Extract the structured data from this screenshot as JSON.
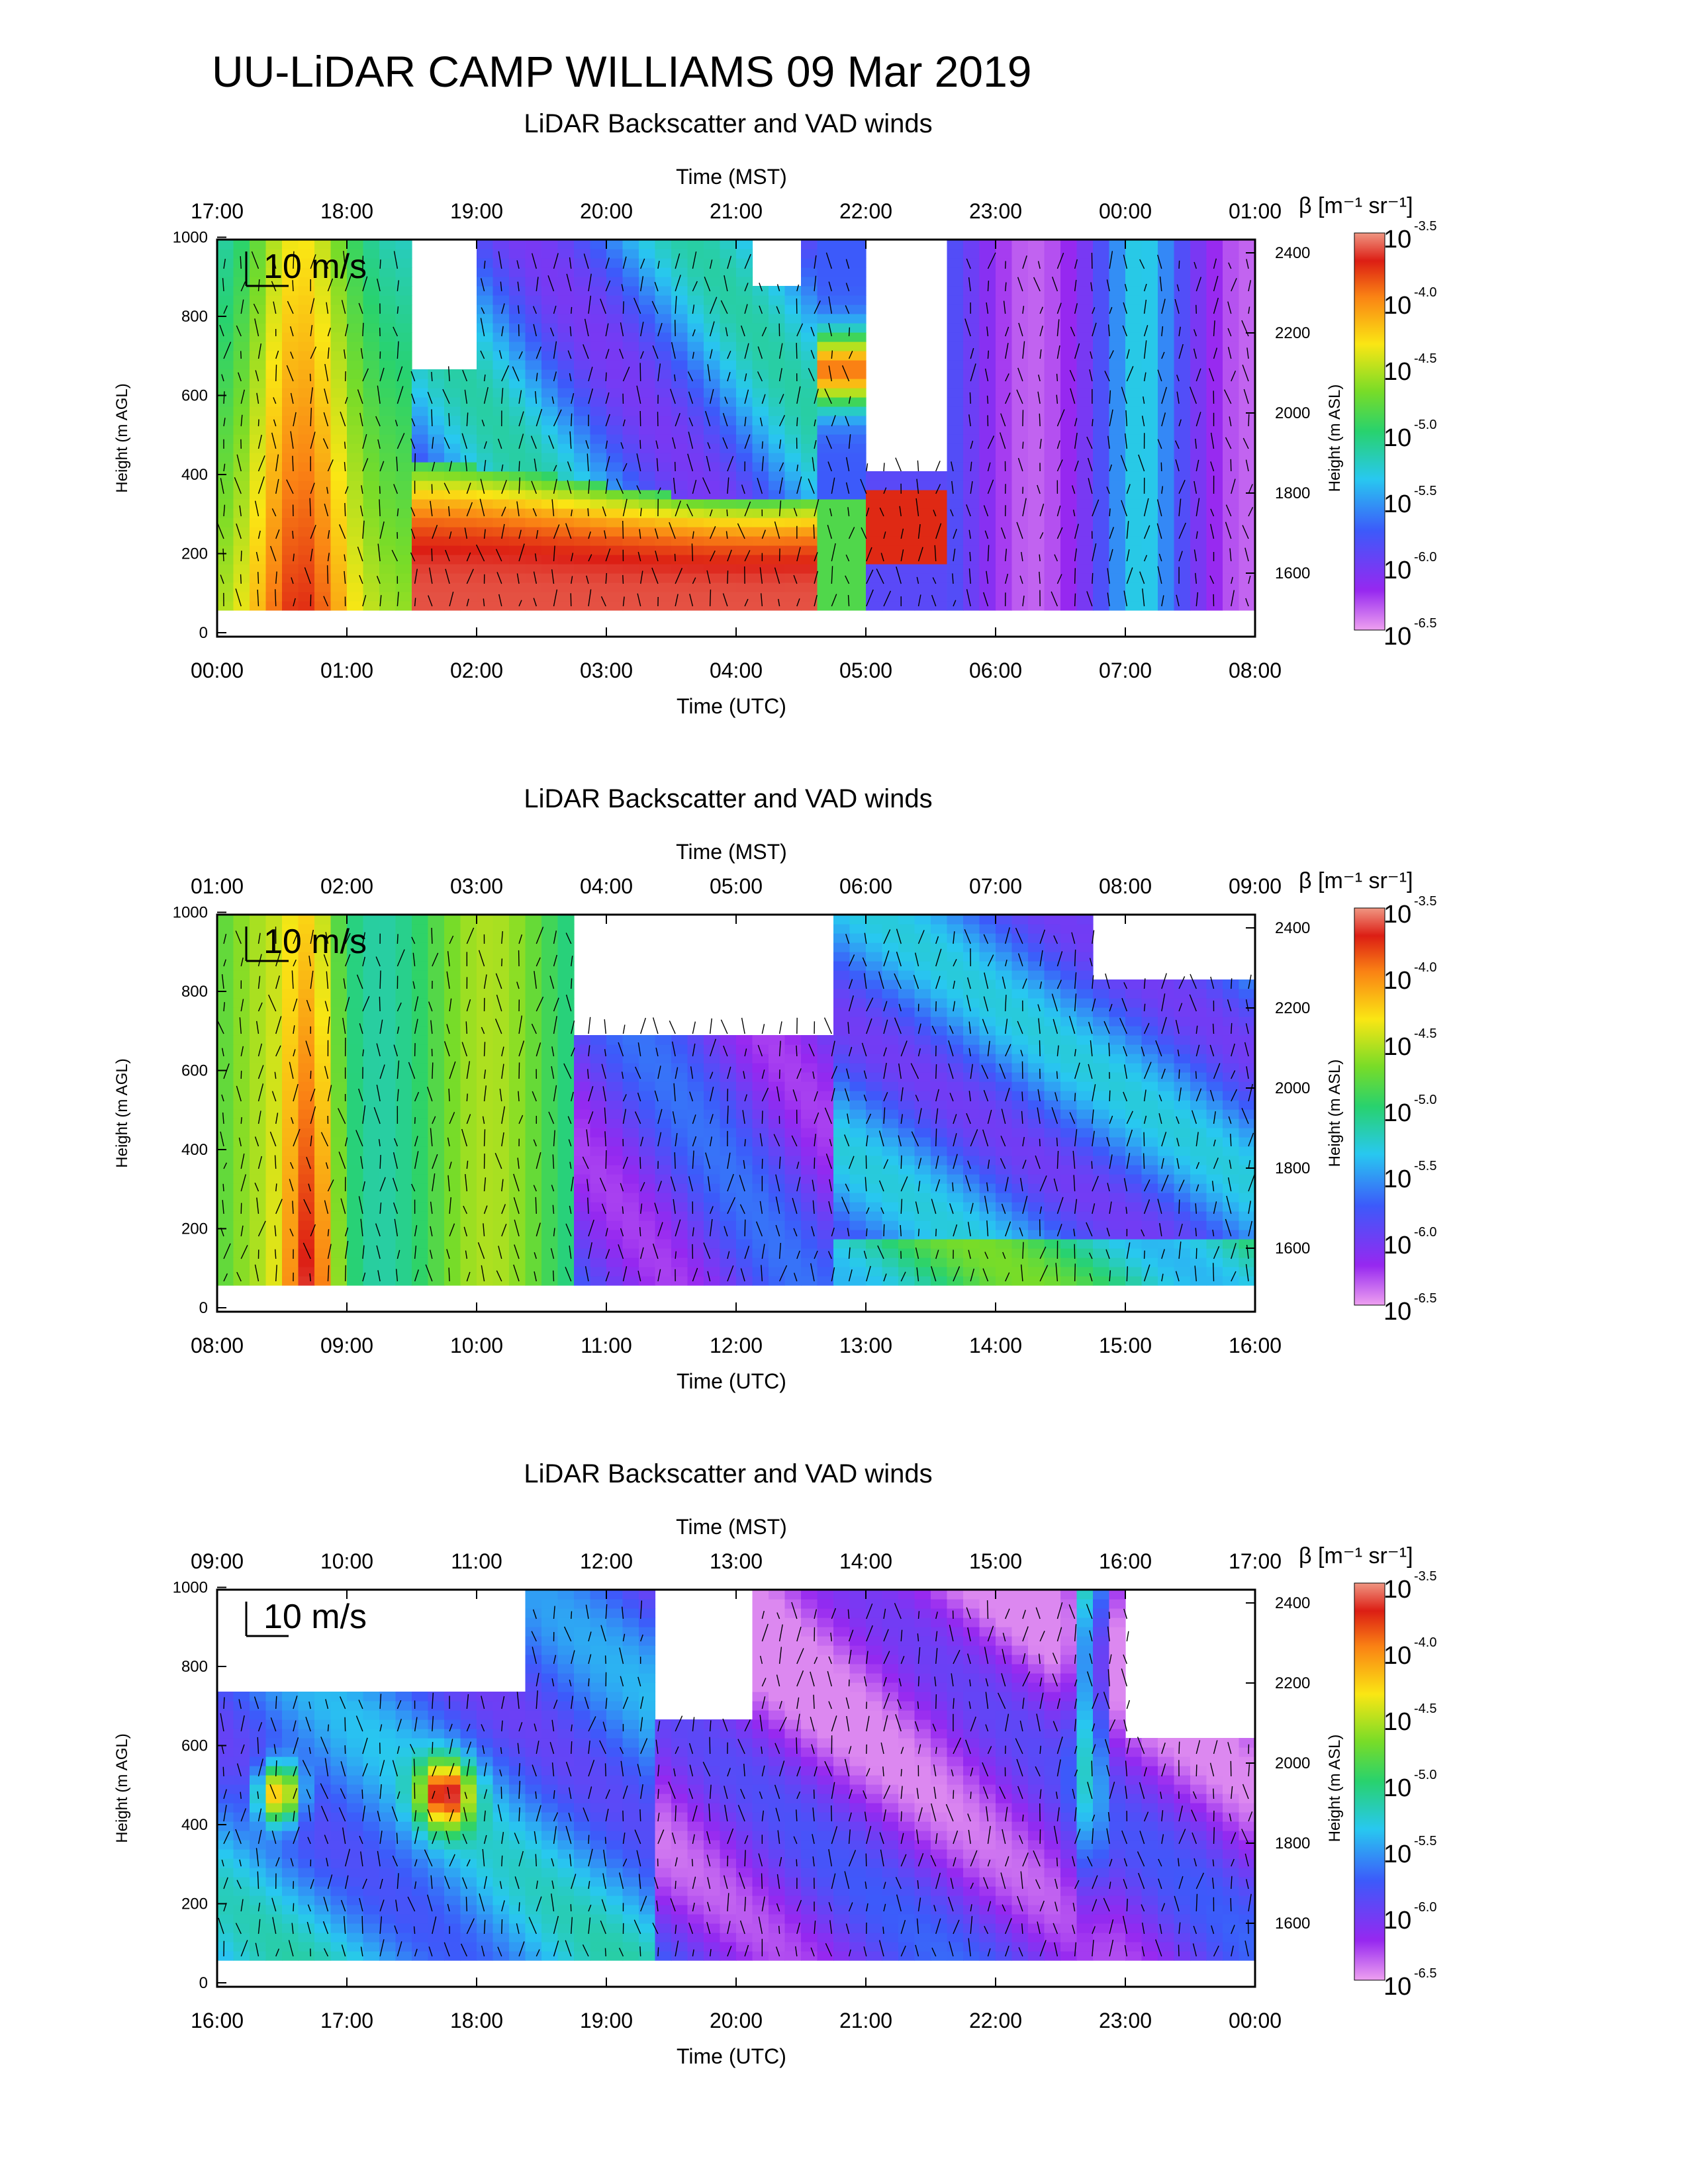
{
  "page": {
    "title": "UU-LiDAR CAMP WILLIAMS 09 Mar 2019"
  },
  "chart_data": [
    {
      "type": "heatmap",
      "title": "LiDAR Backscatter and VAD winds",
      "xlabel_bottom": "Time (UTC)",
      "xlabel_top": "Time (MST)",
      "ylabel_left": "Height (m AGL)",
      "ylabel_right": "Height (m ASL)",
      "colorbar_label": "β [m⁻¹ sr⁻¹]",
      "colorbar_ticks": [
        "-3.5",
        "-4.0",
        "-4.5",
        "-5.0",
        "-5.5",
        "-6.0",
        "-6.5"
      ],
      "colorbar_base": "10",
      "vector_scale_label": "10 m/s",
      "x_bottom_ticks": [
        "00:00",
        "01:00",
        "02:00",
        "03:00",
        "04:00",
        "05:00",
        "06:00",
        "07:00",
        "08:00"
      ],
      "x_top_ticks": [
        "17:00",
        "18:00",
        "19:00",
        "20:00",
        "21:00",
        "22:00",
        "23:00",
        "00:00",
        "01:00"
      ],
      "y_left_ticks": [
        "0",
        "200",
        "400",
        "600",
        "800",
        "1000"
      ],
      "y_right_ticks": [
        "1600",
        "1800",
        "2000",
        "2200",
        "2400"
      ],
      "ylim": [
        0,
        1000
      ]
    },
    {
      "type": "heatmap",
      "title": "LiDAR Backscatter and VAD winds",
      "xlabel_bottom": "Time (UTC)",
      "xlabel_top": "Time (MST)",
      "ylabel_left": "Height (m AGL)",
      "ylabel_right": "Height (m ASL)",
      "colorbar_label": "β [m⁻¹ sr⁻¹]",
      "colorbar_ticks": [
        "-3.5",
        "-4.0",
        "-4.5",
        "-5.0",
        "-5.5",
        "-6.0",
        "-6.5"
      ],
      "colorbar_base": "10",
      "vector_scale_label": "10 m/s",
      "x_bottom_ticks": [
        "08:00",
        "09:00",
        "10:00",
        "11:00",
        "12:00",
        "13:00",
        "14:00",
        "15:00",
        "16:00"
      ],
      "x_top_ticks": [
        "01:00",
        "02:00",
        "03:00",
        "04:00",
        "05:00",
        "06:00",
        "07:00",
        "08:00",
        "09:00"
      ],
      "y_left_ticks": [
        "0",
        "200",
        "400",
        "600",
        "800",
        "1000"
      ],
      "y_right_ticks": [
        "1600",
        "1800",
        "2000",
        "2200",
        "2400"
      ],
      "ylim": [
        0,
        1000
      ]
    },
    {
      "type": "heatmap",
      "title": "LiDAR Backscatter and VAD winds",
      "xlabel_bottom": "Time (UTC)",
      "xlabel_top": "Time (MST)",
      "ylabel_left": "Height (m AGL)",
      "ylabel_right": "Height (m ASL)",
      "colorbar_label": "β [m⁻¹ sr⁻¹]",
      "colorbar_ticks": [
        "-3.5",
        "-4.0",
        "-4.5",
        "-5.0",
        "-5.5",
        "-6.0",
        "-6.5"
      ],
      "colorbar_base": "10",
      "vector_scale_label": "10 m/s",
      "x_bottom_ticks": [
        "16:00",
        "17:00",
        "18:00",
        "19:00",
        "20:00",
        "21:00",
        "22:00",
        "23:00",
        "00:00"
      ],
      "x_top_ticks": [
        "09:00",
        "10:00",
        "11:00",
        "12:00",
        "13:00",
        "14:00",
        "15:00",
        "16:00",
        "17:00"
      ],
      "y_left_ticks": [
        "0",
        "200",
        "400",
        "600",
        "800",
        "1000"
      ],
      "y_right_ticks": [
        "1600",
        "1800",
        "2000",
        "2200",
        "2400"
      ],
      "ylim": [
        0,
        1000
      ]
    }
  ]
}
